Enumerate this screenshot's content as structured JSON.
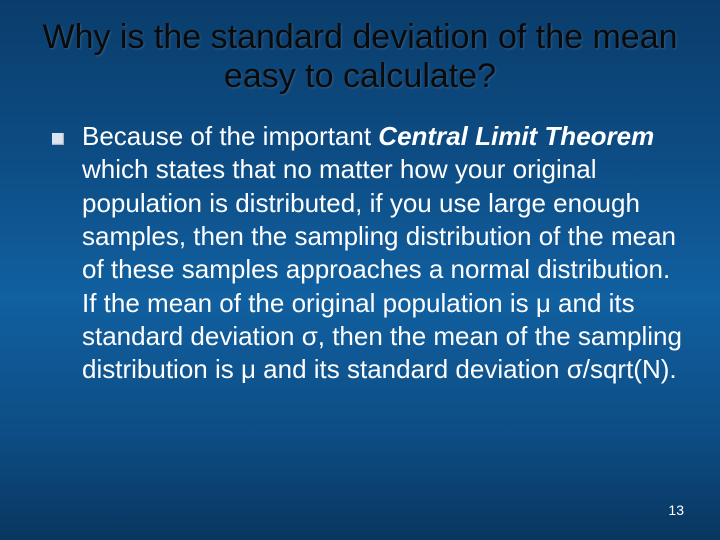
{
  "slide": {
    "title": "Why is the standard deviation of the mean easy to calculate?",
    "title_fontsize": 34,
    "title_color": "#0a0a0a",
    "bullet_color": "#d8e4f0",
    "body_prefix": "Because of the important ",
    "body_emphasis": "Central Limit Theorem",
    "body_suffix": " which states that no matter how your original population is distributed, if you use large enough samples, then the sampling distribution of the mean of these samples approaches a normal distribution. If the mean of the original population is μ and its standard deviation σ, then the mean of the sampling distribution is μ and its standard deviation σ/sqrt(N).",
    "body_fontsize": 26,
    "body_color": "#ffffff",
    "page_number": "13",
    "pagenum_fontsize": 14,
    "background_gradient": [
      "#0a3d6b",
      "#0d4d85",
      "#1160a0",
      "#0d4d85",
      "#093660"
    ]
  }
}
